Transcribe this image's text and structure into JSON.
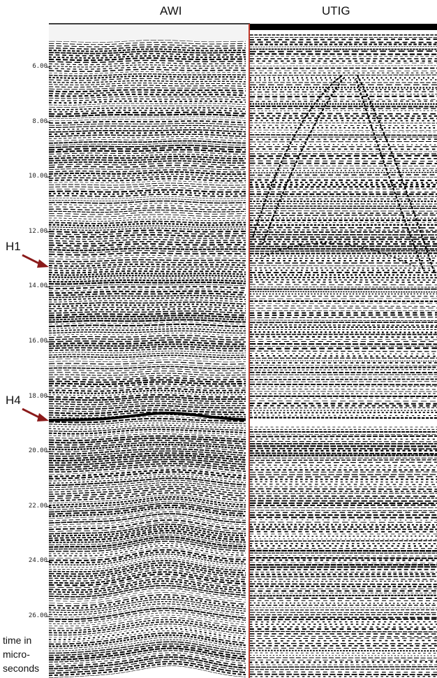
{
  "panels": {
    "left_label": "AWI",
    "right_label": "UTIG"
  },
  "axis": {
    "ticks": [
      "6.00",
      "8.00",
      "10.00",
      "12.00",
      "14.00",
      "16.00",
      "18.00",
      "20.00",
      "22.00",
      "24.00",
      "26.00"
    ],
    "caption_lines": [
      "time in",
      "micro-",
      "seconds"
    ]
  },
  "horizons": [
    {
      "label": "H1",
      "time": 13.2
    },
    {
      "label": "H4",
      "time": 18.8
    }
  ],
  "colors": {
    "divider": "#c0392b",
    "arrow": "#8b1a1a",
    "ink": "#000000"
  }
}
